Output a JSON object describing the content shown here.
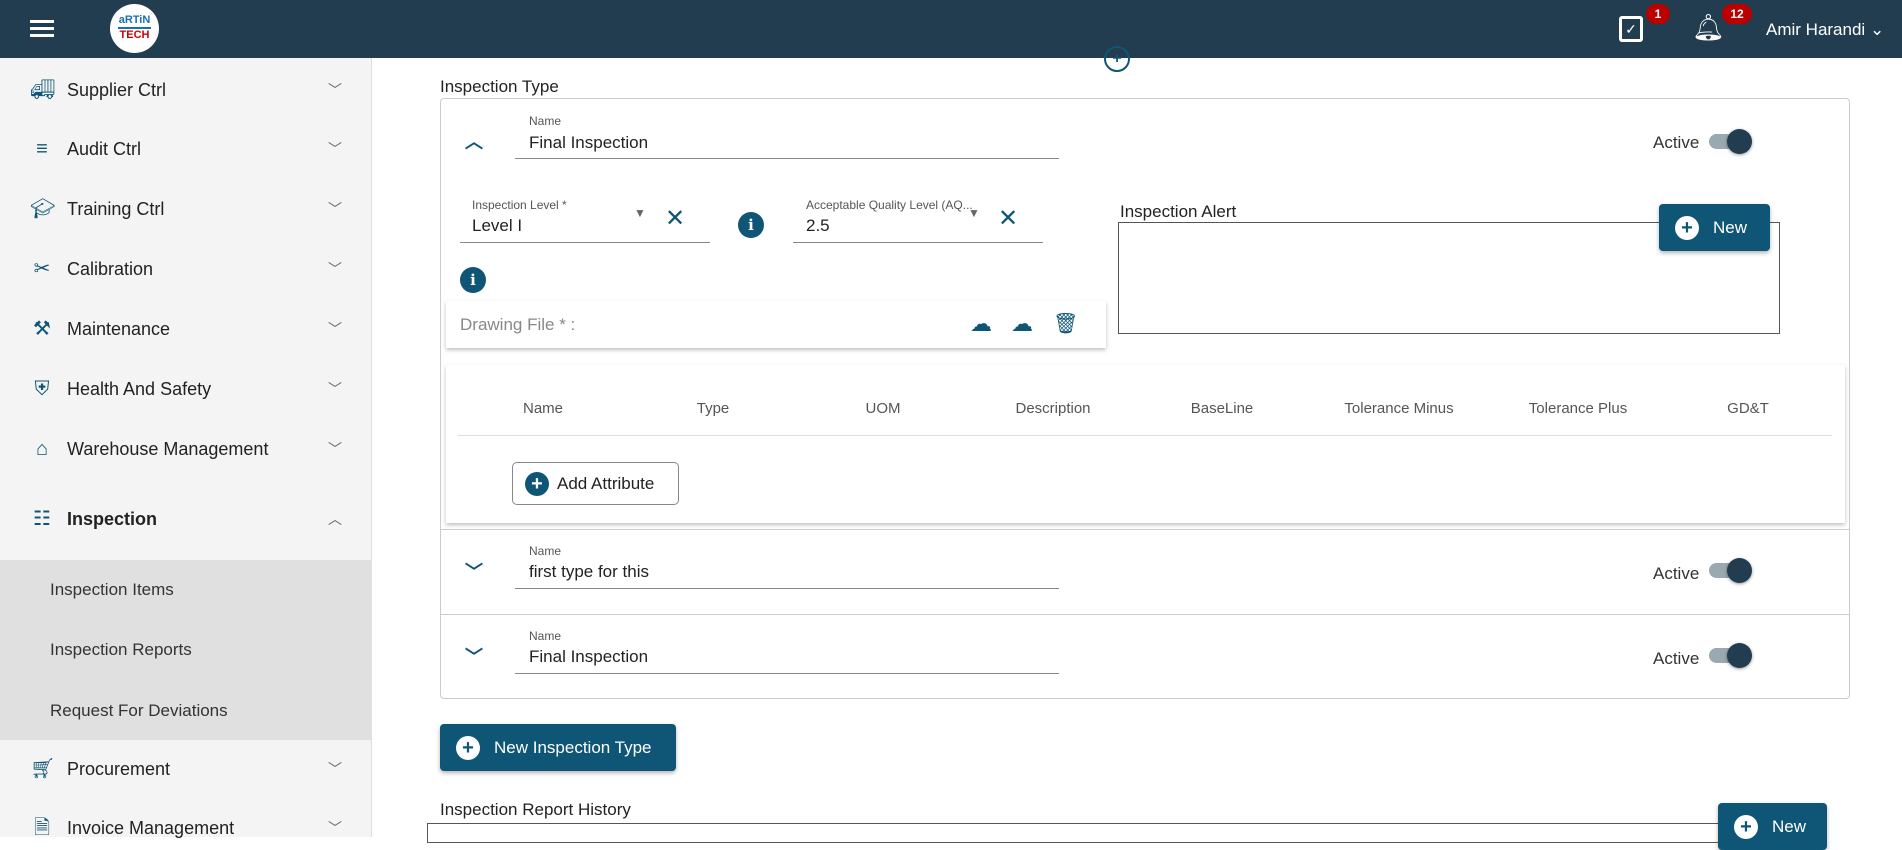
{
  "header": {
    "user_name": "Amir Harandi",
    "calendar_badge": "1",
    "notification_badge": "12",
    "logo_top": "aRTiN",
    "logo_bottom": "TECH"
  },
  "sidebar": {
    "items": [
      {
        "label": "Supplier Ctrl",
        "icon": "truck-icon"
      },
      {
        "label": "Audit Ctrl",
        "icon": "audit-search-icon"
      },
      {
        "label": "Training Ctrl",
        "icon": "graduation-cap-icon"
      },
      {
        "label": "Calibration",
        "icon": "tools-icon"
      },
      {
        "label": "Maintenance",
        "icon": "wrench-icon"
      },
      {
        "label": "Health And Safety",
        "icon": "shield-plus-icon"
      },
      {
        "label": "Warehouse Management",
        "icon": "home-icon"
      },
      {
        "label": "Inspection",
        "icon": "list-icon"
      },
      {
        "label": "Procurement",
        "icon": "cart-icon"
      },
      {
        "label": "Invoice Management",
        "icon": "invoice-icon"
      }
    ],
    "subitems": [
      "Inspection Items",
      "Inspection Reports",
      "Request For Deviations"
    ]
  },
  "main": {
    "inspection_type_label": "Inspection Type",
    "types": [
      {
        "name_label": "Name",
        "name": "Final Inspection",
        "active_label": "Active",
        "active": true,
        "expanded": true
      },
      {
        "name_label": "Name",
        "name": "first type for this",
        "active_label": "Active",
        "active": true,
        "expanded": false
      },
      {
        "name_label": "Name",
        "name": "Final Inspection",
        "active_label": "Active",
        "active": true,
        "expanded": false
      }
    ],
    "inspection_level_label": "Inspection Level *",
    "inspection_level": "Level I",
    "aql_label": "Acceptable Quality Level (AQ...",
    "aql": "2.5",
    "drawing_file_label": "Drawing File *  :",
    "inspection_alert_label": "Inspection Alert",
    "new_label": "New",
    "attr_columns": [
      "Name",
      "Type",
      "UOM",
      "Description",
      "BaseLine",
      "Tolerance Minus",
      "Tolerance Plus",
      "GD&T"
    ],
    "add_attribute_label": "Add Attribute",
    "new_inspection_type_label": "New Inspection Type",
    "report_history_label": "Inspection Report History",
    "report_new_label": "New"
  },
  "colors": {
    "header": "#223d4f",
    "accent": "#0f5575",
    "badge": "#bb0000"
  }
}
